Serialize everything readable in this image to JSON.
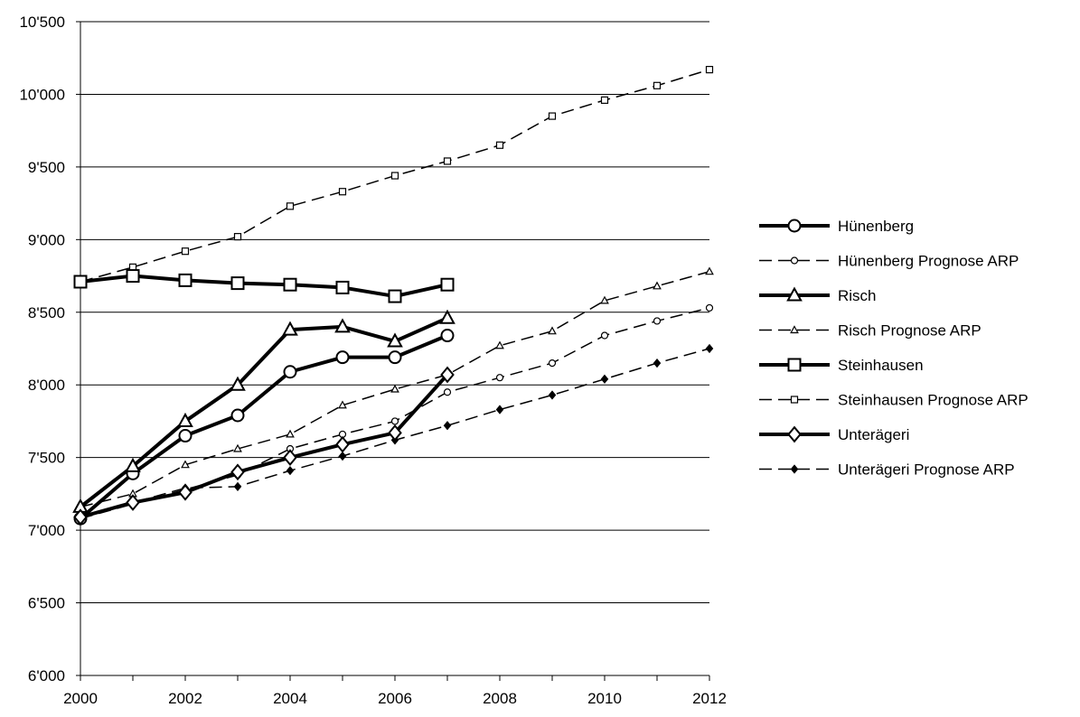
{
  "chart_data": {
    "type": "line",
    "title": "",
    "xlabel": "",
    "ylabel": "",
    "xlim": [
      2000,
      2012
    ],
    "ylim": [
      6000,
      10500
    ],
    "x_ticks": [
      "2000",
      "2002",
      "2004",
      "2006",
      "2008",
      "2010",
      "2012"
    ],
    "y_ticks": [
      "6'000",
      "6'500",
      "7'000",
      "7'500",
      "8'000",
      "8'500",
      "9'000",
      "9'500",
      "10'000",
      "10'500"
    ],
    "grid": "horizontal",
    "legend_position": "right",
    "series": [
      {
        "name": "Hünenberg",
        "style": "solid",
        "marker": "circle",
        "x": [
          2000,
          2001,
          2002,
          2003,
          2004,
          2005,
          2006,
          2007
        ],
        "values": [
          7080,
          7390,
          7650,
          7790,
          8090,
          8190,
          8190,
          8340
        ]
      },
      {
        "name": "Hünenberg Prognose ARP",
        "style": "dashed",
        "marker": "circle",
        "x": [
          2000,
          2001,
          2002,
          2003,
          2004,
          2005,
          2006,
          2007,
          2008,
          2009,
          2010,
          2011,
          2012
        ],
        "values": [
          7080,
          7180,
          7280,
          7380,
          7560,
          7660,
          7750,
          7950,
          8050,
          8150,
          8340,
          8440,
          8530
        ]
      },
      {
        "name": "Risch",
        "style": "solid",
        "marker": "triangle",
        "x": [
          2000,
          2001,
          2002,
          2003,
          2004,
          2005,
          2006,
          2007
        ],
        "values": [
          7160,
          7440,
          7750,
          8000,
          8380,
          8400,
          8300,
          8460
        ]
      },
      {
        "name": "Risch Prognose ARP",
        "style": "dashed",
        "marker": "triangle",
        "x": [
          2000,
          2001,
          2002,
          2003,
          2004,
          2005,
          2006,
          2007,
          2008,
          2009,
          2010,
          2011,
          2012
        ],
        "values": [
          7160,
          7250,
          7450,
          7560,
          7660,
          7860,
          7970,
          8070,
          8270,
          8370,
          8580,
          8680,
          8780
        ]
      },
      {
        "name": "Steinhausen",
        "style": "solid",
        "marker": "square",
        "x": [
          2000,
          2001,
          2002,
          2003,
          2004,
          2005,
          2006,
          2007
        ],
        "values": [
          8710,
          8750,
          8720,
          8700,
          8690,
          8670,
          8610,
          8690
        ]
      },
      {
        "name": "Steinhausen Prognose ARP",
        "style": "dashed",
        "marker": "square",
        "x": [
          2000,
          2001,
          2002,
          2003,
          2004,
          2005,
          2006,
          2007,
          2008,
          2009,
          2010,
          2011,
          2012
        ],
        "values": [
          8710,
          8810,
          8920,
          9020,
          9230,
          9330,
          9440,
          9540,
          9650,
          9850,
          9960,
          10060,
          10170
        ]
      },
      {
        "name": "Unterägeri",
        "style": "solid",
        "marker": "diamond",
        "x": [
          2000,
          2001,
          2002,
          2003,
          2004,
          2005,
          2006,
          2007
        ],
        "values": [
          7090,
          7190,
          7260,
          7400,
          7500,
          7590,
          7670,
          8070
        ]
      },
      {
        "name": "Unterägeri Prognose ARP",
        "style": "dashed",
        "marker": "diamond",
        "x": [
          2000,
          2001,
          2002,
          2003,
          2004,
          2005,
          2006,
          2007,
          2008,
          2009,
          2010,
          2011,
          2012
        ],
        "values": [
          7090,
          7190,
          7290,
          7300,
          7410,
          7510,
          7620,
          7720,
          7830,
          7930,
          8040,
          8150,
          8250
        ]
      }
    ]
  }
}
